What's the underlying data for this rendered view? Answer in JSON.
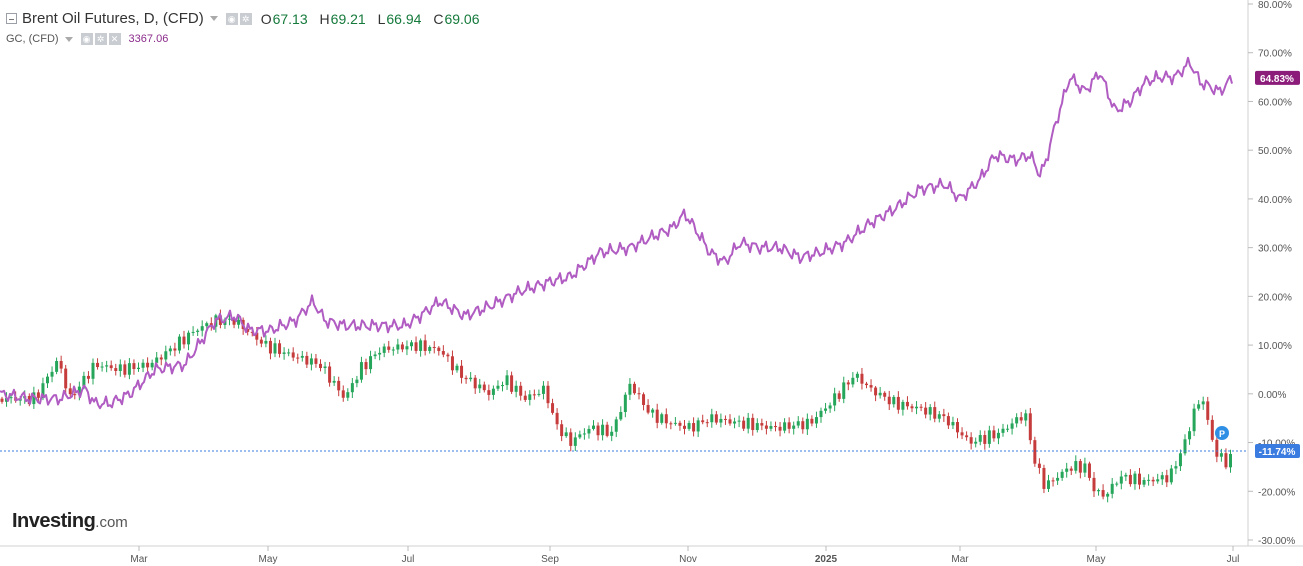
{
  "legend": {
    "primary": {
      "symbol": "Brent Oil Futures, D, (CFD)",
      "o_label": "O",
      "o": "67.13",
      "h_label": "H",
      "h": "69.21",
      "l_label": "L",
      "l": "66.94",
      "c_label": "C",
      "c": "69.06"
    },
    "secondary": {
      "symbol": "GC, (CFD)",
      "value": "3367.06"
    }
  },
  "logo": {
    "main": "Investing",
    "suffix": ".com"
  },
  "colors": {
    "up": "#26a65b",
    "down": "#c63b3b",
    "gold": "#b05cc2",
    "last_brent_badge": "#3a7ce0",
    "last_gold_badge": "#8b1c7a",
    "axis_text": "#555555"
  },
  "icons": [
    "collapse-square-icon",
    "dropdown-caret-icon",
    "eye-icon",
    "settings-icon",
    "close-icon",
    "p-marker-icon"
  ],
  "chart_data": {
    "type": "line",
    "x_ticks": [
      "Mar",
      "May",
      "Jul",
      "Sep",
      "Nov",
      "2025",
      "Mar",
      "May",
      "Jul"
    ],
    "y_ticks": [
      "80.00%",
      "70.00%",
      "60.00%",
      "50.00%",
      "40.00%",
      "30.00%",
      "20.00%",
      "10.00%",
      "0.00%",
      "-10.00%",
      "-20.00%",
      "-30.00%"
    ],
    "ylim": [
      -30,
      80
    ],
    "grid": false,
    "last_values": {
      "brent": "-11.74%",
      "gold": "64.83%"
    },
    "marker_label": "P",
    "series": [
      {
        "name": "Brent Oil Futures, D, (CFD)",
        "style": "candlestick",
        "anchors": [
          [
            0,
            -1
          ],
          [
            35,
            -1
          ],
          [
            58,
            7
          ],
          [
            70,
            -1
          ],
          [
            95,
            6
          ],
          [
            120,
            5
          ],
          [
            150,
            6
          ],
          [
            170,
            9
          ],
          [
            195,
            13
          ],
          [
            215,
            15
          ],
          [
            235,
            15
          ],
          [
            265,
            10
          ],
          [
            290,
            8
          ],
          [
            320,
            6
          ],
          [
            345,
            -1
          ],
          [
            360,
            5
          ],
          [
            380,
            9
          ],
          [
            415,
            10
          ],
          [
            440,
            9
          ],
          [
            460,
            4
          ],
          [
            490,
            0
          ],
          [
            505,
            3
          ],
          [
            525,
            -1
          ],
          [
            545,
            1
          ],
          [
            555,
            -6
          ],
          [
            570,
            -10
          ],
          [
            590,
            -7
          ],
          [
            612,
            -8
          ],
          [
            630,
            2
          ],
          [
            650,
            -4
          ],
          [
            670,
            -6
          ],
          [
            690,
            -7
          ],
          [
            710,
            -5
          ],
          [
            740,
            -6
          ],
          [
            775,
            -7
          ],
          [
            810,
            -6
          ],
          [
            830,
            -2
          ],
          [
            855,
            4
          ],
          [
            870,
            1
          ],
          [
            895,
            -2
          ],
          [
            920,
            -3
          ],
          [
            945,
            -5
          ],
          [
            970,
            -10
          ],
          [
            1000,
            -8
          ],
          [
            1025,
            -4
          ],
          [
            1035,
            -14
          ],
          [
            1045,
            -19
          ],
          [
            1070,
            -15
          ],
          [
            1085,
            -15
          ],
          [
            1095,
            -20
          ],
          [
            1105,
            -21
          ],
          [
            1120,
            -17
          ],
          [
            1145,
            -18
          ],
          [
            1170,
            -17
          ],
          [
            1185,
            -10
          ],
          [
            1195,
            -3
          ],
          [
            1203,
            -1
          ],
          [
            1210,
            -8
          ],
          [
            1218,
            -13
          ],
          [
            1228,
            -14
          ],
          [
            1235,
            -12
          ]
        ]
      },
      {
        "name": "GC, (CFD)",
        "style": "line",
        "anchors": [
          [
            0,
            0
          ],
          [
            30,
            -1
          ],
          [
            60,
            -1
          ],
          [
            85,
            1
          ],
          [
            95,
            -2
          ],
          [
            110,
            -2
          ],
          [
            130,
            0
          ],
          [
            155,
            5
          ],
          [
            185,
            6
          ],
          [
            215,
            15
          ],
          [
            235,
            16
          ],
          [
            250,
            13
          ],
          [
            270,
            13
          ],
          [
            295,
            15
          ],
          [
            313,
            19
          ],
          [
            325,
            15
          ],
          [
            345,
            14
          ],
          [
            360,
            14
          ],
          [
            385,
            14
          ],
          [
            405,
            14
          ],
          [
            420,
            16
          ],
          [
            440,
            19
          ],
          [
            465,
            16
          ],
          [
            490,
            18
          ],
          [
            520,
            21
          ],
          [
            550,
            23
          ],
          [
            570,
            24
          ],
          [
            600,
            29
          ],
          [
            630,
            30
          ],
          [
            650,
            32
          ],
          [
            672,
            34
          ],
          [
            685,
            37
          ],
          [
            698,
            33
          ],
          [
            710,
            29
          ],
          [
            725,
            27
          ],
          [
            740,
            31
          ],
          [
            760,
            30
          ],
          [
            780,
            30
          ],
          [
            800,
            28
          ],
          [
            820,
            29
          ],
          [
            845,
            31
          ],
          [
            870,
            35
          ],
          [
            895,
            38
          ],
          [
            920,
            42
          ],
          [
            945,
            43
          ],
          [
            960,
            40
          ],
          [
            980,
            44
          ],
          [
            995,
            49
          ],
          [
            1015,
            48
          ],
          [
            1030,
            49
          ],
          [
            1040,
            45
          ],
          [
            1045,
            47
          ],
          [
            1055,
            55
          ],
          [
            1070,
            65
          ],
          [
            1085,
            62
          ],
          [
            1100,
            66
          ],
          [
            1115,
            58
          ],
          [
            1130,
            60
          ],
          [
            1145,
            64
          ],
          [
            1160,
            65
          ],
          [
            1175,
            65
          ],
          [
            1190,
            68
          ],
          [
            1200,
            64
          ],
          [
            1210,
            63
          ],
          [
            1220,
            62
          ],
          [
            1232,
            64.8
          ]
        ]
      }
    ]
  }
}
